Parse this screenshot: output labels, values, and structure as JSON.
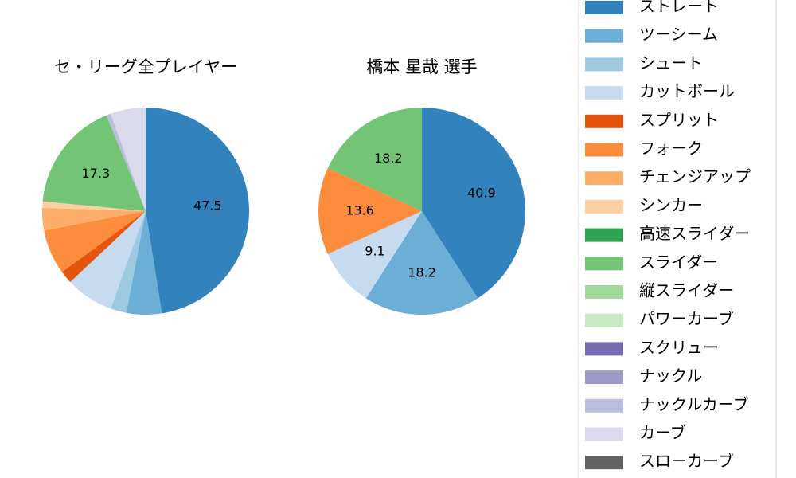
{
  "legend": [
    {
      "name": "ストレート",
      "color": "#3182bd"
    },
    {
      "name": "ツーシーム",
      "color": "#6baed6"
    },
    {
      "name": "シュート",
      "color": "#9ecae1"
    },
    {
      "name": "カットボール",
      "color": "#c6dbef"
    },
    {
      "name": "スプリット",
      "color": "#e6550d"
    },
    {
      "name": "フォーク",
      "color": "#fd8d3c"
    },
    {
      "name": "チェンジアップ",
      "color": "#fdae6b"
    },
    {
      "name": "シンカー",
      "color": "#fdd0a2"
    },
    {
      "name": "高速スライダー",
      "color": "#31a354"
    },
    {
      "name": "スライダー",
      "color": "#74c476"
    },
    {
      "name": "縦スライダー",
      "color": "#a1d99b"
    },
    {
      "name": "パワーカーブ",
      "color": "#c7e9c0"
    },
    {
      "name": "スクリュー",
      "color": "#756bb1"
    },
    {
      "name": "ナックル",
      "color": "#9e9ac8"
    },
    {
      "name": "ナックルカーブ",
      "color": "#bcbddc"
    },
    {
      "name": "カーブ",
      "color": "#dadaeb"
    },
    {
      "name": "スローカーブ",
      "color": "#636363"
    }
  ],
  "chart_data": [
    {
      "type": "pie",
      "title": "セ・リーグ全プレイヤー",
      "values": [
        47.5,
        5.5,
        2.5,
        7.5,
        2,
        7,
        3.5,
        1,
        0,
        17.3,
        0,
        0,
        0,
        0,
        0.7,
        5.5,
        0
      ]
    },
    {
      "type": "pie",
      "title": "橋本 星哉  選手",
      "values": [
        40.9,
        18.2,
        0,
        9.1,
        0,
        13.6,
        0,
        0,
        0,
        18.2,
        0,
        0,
        0,
        0,
        0,
        0,
        0
      ]
    }
  ]
}
